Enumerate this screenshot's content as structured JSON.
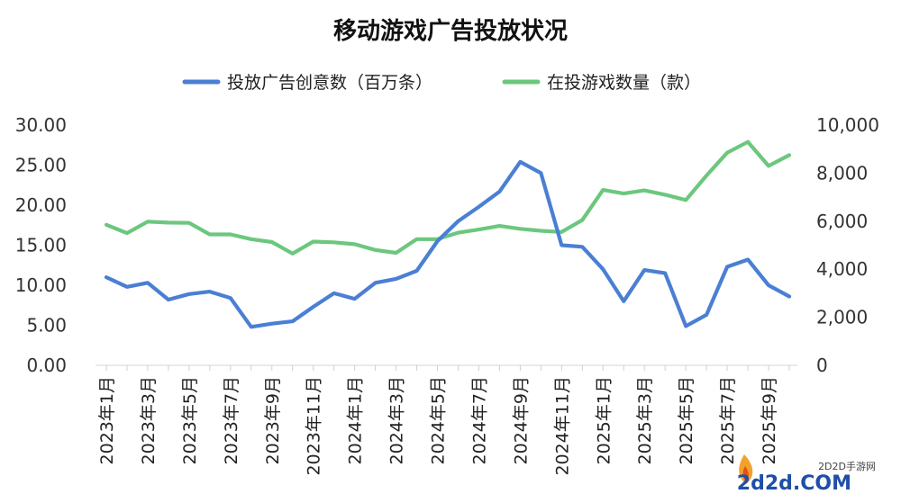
{
  "chart_data": {
    "type": "line",
    "title": "移动游戏广告投放状况",
    "legend": {
      "placement": "top-center"
    },
    "x": [
      "2023年1月",
      "2023年2月",
      "2023年3月",
      "2023年4月",
      "2023年5月",
      "2023年6月",
      "2023年7月",
      "2023年8月",
      "2023年9月",
      "2023年10月",
      "2023年11月",
      "2023年12月",
      "2024年1月",
      "2024年2月",
      "2024年3月",
      "2024年4月",
      "2024年5月",
      "2024年6月",
      "2024年7月",
      "2024年8月",
      "2024年9月",
      "2024年10月",
      "2024年11月",
      "2024年12月",
      "2025年1月",
      "2025年2月",
      "2025年3月",
      "2025年4月",
      "2025年5月",
      "2025年6月",
      "2025年7月",
      "2025年8月",
      "2025年9月",
      "2025年10月"
    ],
    "x_tick_labels": [
      "2023年1月",
      "2023年3月",
      "2023年5月",
      "2023年7月",
      "2023年9月",
      "2023年11月",
      "2024年1月",
      "2024年3月",
      "2024年5月",
      "2024年7月",
      "2024年9月",
      "2024年11月",
      "2025年1月",
      "2025年3月",
      "2025年5月",
      "2025年7月",
      "2025年9月"
    ],
    "series": [
      {
        "name": "投放广告创意数（百万条）",
        "axis": "left",
        "color": "#4a7fd4",
        "values": [
          11.0,
          9.8,
          10.3,
          8.2,
          8.9,
          9.2,
          8.4,
          4.8,
          5.2,
          5.5,
          7.3,
          9.0,
          8.3,
          10.3,
          10.8,
          11.8,
          15.5,
          18.0,
          19.8,
          21.7,
          25.4,
          24.0,
          15.0,
          14.8,
          12.0,
          8.0,
          11.9,
          11.5,
          4.9,
          6.3,
          12.3,
          13.2,
          10.0,
          8.6
        ]
      },
      {
        "name": "在投游戏数量（款）",
        "axis": "right",
        "color": "#6cc77e",
        "values": [
          5850,
          5500,
          5980,
          5940,
          5930,
          5450,
          5450,
          5250,
          5130,
          4650,
          5150,
          5120,
          5040,
          4800,
          4680,
          5250,
          5250,
          5520,
          5650,
          5800,
          5680,
          5600,
          5550,
          6050,
          7300,
          7150,
          7280,
          7100,
          6880,
          7900,
          8850,
          9300,
          8300,
          8750
        ]
      }
    ],
    "y_left": {
      "range": [
        0,
        30
      ],
      "ticks": [
        "0.00",
        "5.00",
        "10.00",
        "15.00",
        "20.00",
        "25.00",
        "30.00"
      ]
    },
    "y_right": {
      "range": [
        0,
        10000
      ],
      "ticks": [
        "0",
        "2,000",
        "4,000",
        "6,000",
        "8,000",
        "10,000"
      ]
    },
    "grid": false
  },
  "watermark": {
    "line1": "2D2D手游网",
    "line2": "2d2d.COM"
  }
}
